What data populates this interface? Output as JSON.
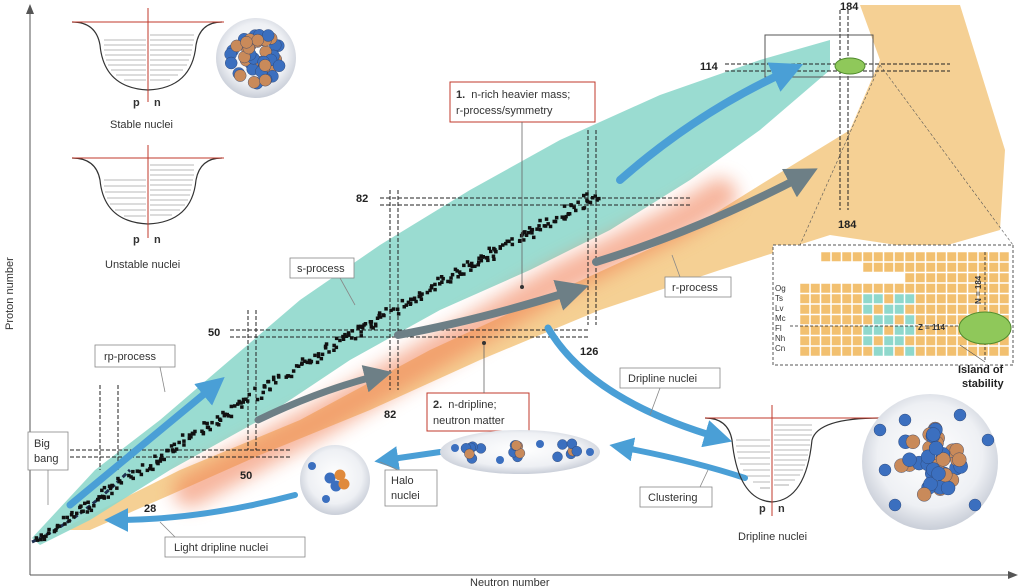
{
  "axes": {
    "x_label": "Neutron number",
    "y_label": "Proton number"
  },
  "magic_numbers": {
    "n28": "28",
    "n50": "50",
    "z50": "50",
    "n82": "82",
    "z82": "82",
    "n126": "126",
    "z114": "114",
    "n184_top": "184",
    "n184_bottom": "184"
  },
  "processes": {
    "big_bang": [
      "Big",
      "bang"
    ],
    "rp_process": "rp-process",
    "s_process": "s-process",
    "r_process": "r-process"
  },
  "callouts": {
    "callout1": {
      "number": "1.",
      "lines": [
        "n-rich heavier mass;",
        "r-process/symmetry"
      ]
    },
    "callout2": {
      "number": "2.",
      "lines": [
        "n-dripline;",
        "neutron matter"
      ]
    }
  },
  "labels": {
    "dripline_nuclei_box": "Dripline nuclei",
    "halo_nuclei": [
      "Halo",
      "nuclei"
    ],
    "clustering": "Clustering",
    "light_dripline": "Light dripline nuclei"
  },
  "potential_wells": {
    "stable": {
      "caption": "Stable nuclei",
      "p": "p",
      "n": "n"
    },
    "unstable": {
      "caption": "Unstable nuclei",
      "p": "p",
      "n": "n"
    },
    "dripline": {
      "caption": "Dripline nuclei",
      "p": "p",
      "n": "n"
    }
  },
  "inset": {
    "elements": [
      "Og",
      "Ts",
      "Lv",
      "Mc",
      "Fl",
      "Nh",
      "Cn"
    ],
    "z_label": "Z = 114",
    "n_label": "N = 184",
    "island": [
      "Island of",
      "stability"
    ]
  },
  "colors": {
    "stable_teal": "#8fd8cc",
    "unknown_orange": "#f2c070",
    "arrow_blue": "#4a9fd6",
    "arrow_gray": "#6d7f86",
    "stable_black": "#111111",
    "glow": "#f07a50",
    "island_green": "#8fc85a",
    "callout_border": "#c0392b"
  }
}
